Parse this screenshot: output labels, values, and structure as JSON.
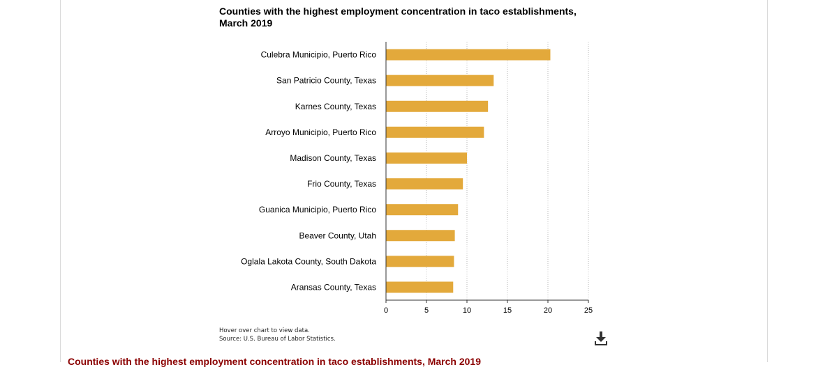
{
  "chart_data": {
    "type": "bar",
    "orientation": "horizontal",
    "title": "Counties with the highest employment concentration in taco establishments, March 2019",
    "categories": [
      "Culebra Municipio, Puerto Rico",
      "San Patricio County, Texas",
      "Karnes County, Texas",
      "Arroyo Municipio, Puerto Rico",
      "Madison County, Texas",
      "Frio County, Texas",
      "Guanica Municipio, Puerto Rico",
      "Beaver County, Utah",
      "Oglala Lakota County, South Dakota",
      "Aransas County, Texas"
    ],
    "values": [
      20.3,
      13.3,
      12.6,
      12.1,
      10.0,
      9.5,
      8.9,
      8.5,
      8.4,
      8.3
    ],
    "xlim": [
      0,
      25
    ],
    "xticks": [
      "0",
      "5",
      "10",
      "15",
      "20",
      "25"
    ],
    "xlabel": "",
    "ylabel": "",
    "grid": "vertical dotted",
    "bar_color": "#e3a93b"
  },
  "notes": {
    "hover": "Hover over chart to view data.",
    "source": "Source: U.S. Bureau of Labor Statistics."
  },
  "icons": {
    "download": "download-icon"
  },
  "caption": "Counties with the highest employment concentration in taco establishments, March 2019"
}
